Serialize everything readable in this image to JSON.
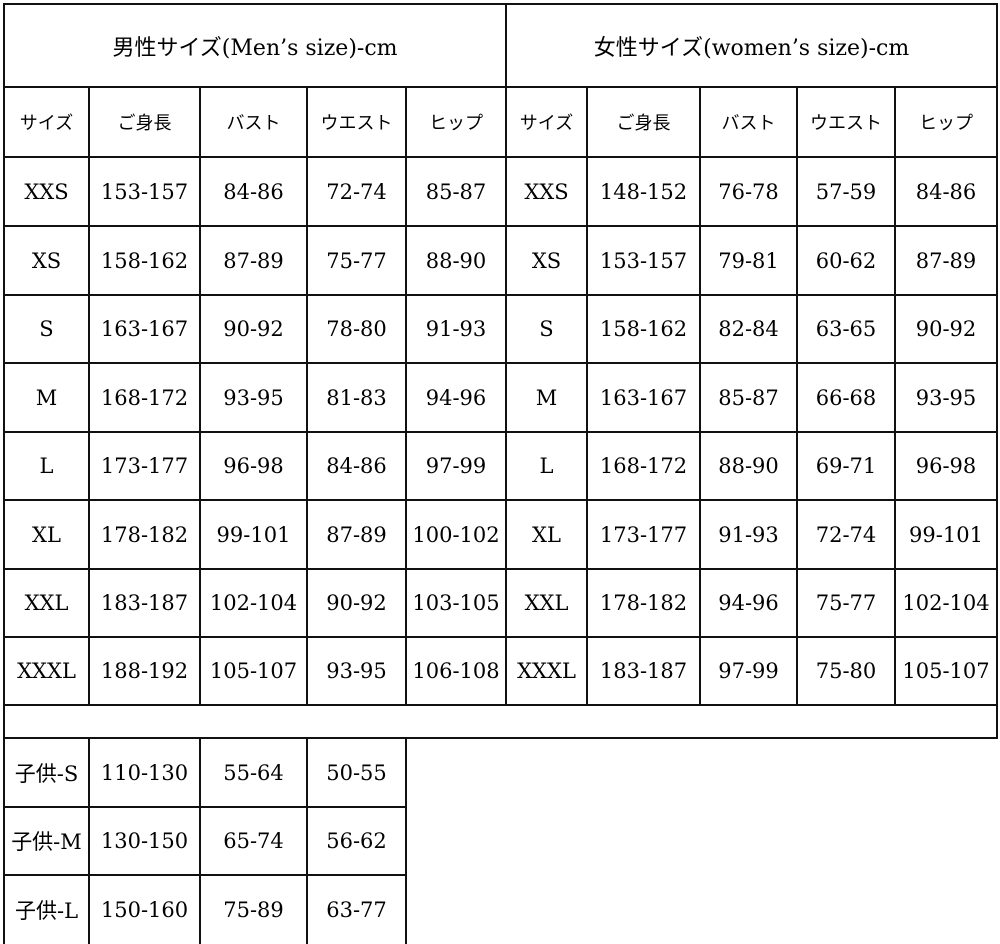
{
  "header": {
    "men": "男性サイズ(Men’s size)-cm",
    "women": "女性サイズ(women’s size)-cm"
  },
  "columns": [
    "サイズ",
    "ご身長",
    "バスト",
    "ウエスト",
    "ヒップ",
    "サイズ",
    "ご身長",
    "バスト",
    "ウエスト",
    "ヒップ"
  ],
  "rows": [
    [
      "XXS",
      "153-157",
      "84-86",
      "72-74",
      "85-87",
      "XXS",
      "148-152",
      "76-78",
      "57-59",
      "84-86"
    ],
    [
      "XS",
      "158-162",
      "87-89",
      "75-77",
      "88-90",
      "XS",
      "153-157",
      "79-81",
      "60-62",
      "87-89"
    ],
    [
      "S",
      "163-167",
      "90-92",
      "78-80",
      "91-93",
      "S",
      "158-162",
      "82-84",
      "63-65",
      "90-92"
    ],
    [
      "M",
      "168-172",
      "93-95",
      "81-83",
      "94-96",
      "M",
      "163-167",
      "85-87",
      "66-68",
      "93-95"
    ],
    [
      "L",
      "173-177",
      "96-98",
      "84-86",
      "97-99",
      "L",
      "168-172",
      "88-90",
      "69-71",
      "96-98"
    ],
    [
      "XL",
      "178-182",
      "99-101",
      "87-89",
      "100-102",
      "XL",
      "173-177",
      "91-93",
      "72-74",
      "99-101"
    ],
    [
      "XXL",
      "183-187",
      "102-104",
      "90-92",
      "103-105",
      "XXL",
      "178-182",
      "94-96",
      "75-77",
      "102-104"
    ],
    [
      "XXXL",
      "188-192",
      "105-107",
      "93-95",
      "106-108",
      "XXXL",
      "183-187",
      "97-99",
      "75-80",
      "105-107"
    ]
  ],
  "kids": [
    [
      "子供-S",
      "110-130",
      "55-64",
      "50-55"
    ],
    [
      "子供-M",
      "130-150",
      "65-74",
      "56-62"
    ],
    [
      "子供-L",
      "150-160",
      "75-89",
      "63-77"
    ]
  ]
}
